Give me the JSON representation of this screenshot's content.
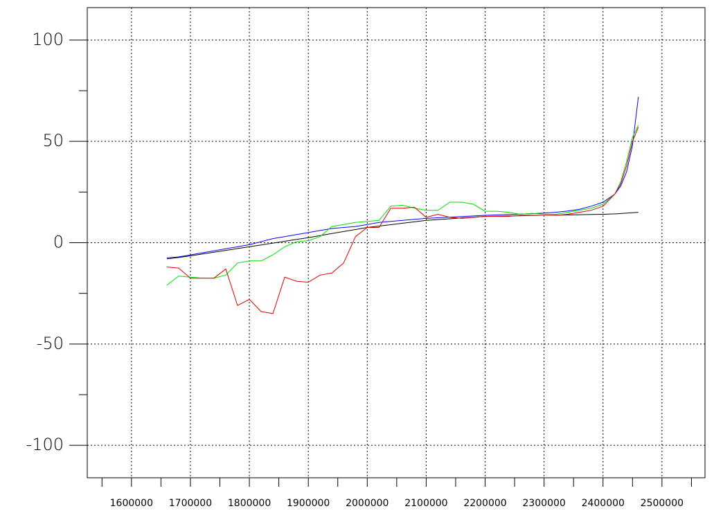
{
  "chart_data": {
    "type": "line",
    "x": [
      1660000,
      1680000,
      1700000,
      1720000,
      1740000,
      1760000,
      1780000,
      1800000,
      1820000,
      1840000,
      1860000,
      1880000,
      1900000,
      1920000,
      1940000,
      1960000,
      1980000,
      2000000,
      2020000,
      2040000,
      2060000,
      2080000,
      2100000,
      2120000,
      2140000,
      2160000,
      2180000,
      2200000,
      2220000,
      2240000,
      2260000,
      2280000,
      2300000,
      2320000,
      2340000,
      2360000,
      2380000,
      2400000,
      2420000,
      2430000,
      2440000,
      2450000,
      2460000
    ],
    "series": [
      {
        "color": "#000000",
        "values": [
          -8,
          -7.3,
          -6.5,
          -5.6,
          -4.7,
          -3.8,
          -2.9,
          -2,
          -1.1,
          -0.2,
          0.7,
          1.6,
          2.5,
          3.5,
          4.5,
          5.5,
          6.5,
          7.5,
          8.2,
          8.9,
          9.6,
          10.3,
          11,
          11.4,
          11.8,
          12.2,
          12.6,
          13,
          13.1,
          13.2,
          13.3,
          13.4,
          13.5,
          13.6,
          13.7,
          13.8,
          13.9,
          14,
          14.2,
          14.4,
          14.6,
          14.8,
          15
        ]
      },
      {
        "color": "#0000ff",
        "values": [
          -7.5,
          -7,
          -6,
          -5,
          -4,
          -3,
          -2,
          -1,
          0.5,
          2,
          3,
          4,
          5,
          6,
          7,
          7.5,
          8,
          9,
          10,
          10.5,
          11,
          11.5,
          12,
          12.3,
          12.6,
          12.9,
          13.2,
          13.5,
          13.7,
          13.9,
          14.1,
          14.3,
          14.6,
          15,
          15.6,
          16.5,
          18,
          20,
          24,
          28,
          35,
          48,
          72
        ]
      },
      {
        "color": "#00dd00",
        "values": [
          -21,
          -16.5,
          -17,
          -17.5,
          -17.5,
          -16,
          -10,
          -9,
          -9,
          -6,
          -2,
          0.5,
          1,
          3,
          8,
          9,
          10,
          10.5,
          11,
          18,
          18.5,
          17,
          16,
          16,
          20,
          20,
          19,
          15.5,
          15.5,
          15,
          14,
          14.5,
          14,
          14,
          15,
          16,
          17,
          19,
          24,
          30,
          40,
          52,
          58
        ]
      },
      {
        "color": "#dd0000",
        "values": [
          -12,
          -12.5,
          -17.5,
          -17.5,
          -17.5,
          -13,
          -31,
          -28,
          -34,
          -35,
          -17,
          -19,
          -19.5,
          -16,
          -15,
          -10,
          3,
          7.5,
          7.5,
          17,
          17,
          17.5,
          12.5,
          14,
          12.5,
          12,
          12.5,
          13,
          13,
          13,
          13.5,
          13.5,
          13.5,
          13.5,
          14,
          15,
          16,
          18,
          24,
          29,
          38,
          50,
          57
        ]
      }
    ],
    "xlim": [
      1525000,
      2573000
    ],
    "xticks": [
      1600000,
      1700000,
      1800000,
      1900000,
      2000000,
      2100000,
      2200000,
      2300000,
      2400000,
      2500000
    ],
    "xminor_ticks": [
      1550000,
      1650000,
      1750000,
      1850000,
      1950000,
      2050000,
      2150000,
      2250000,
      2350000,
      2450000,
      2550000
    ],
    "ylim": [
      -116,
      116
    ],
    "yticks": [
      -100,
      -50,
      0,
      50,
      100
    ],
    "yminor_ticks": [
      -75,
      -25,
      25,
      75
    ],
    "grid": true
  }
}
